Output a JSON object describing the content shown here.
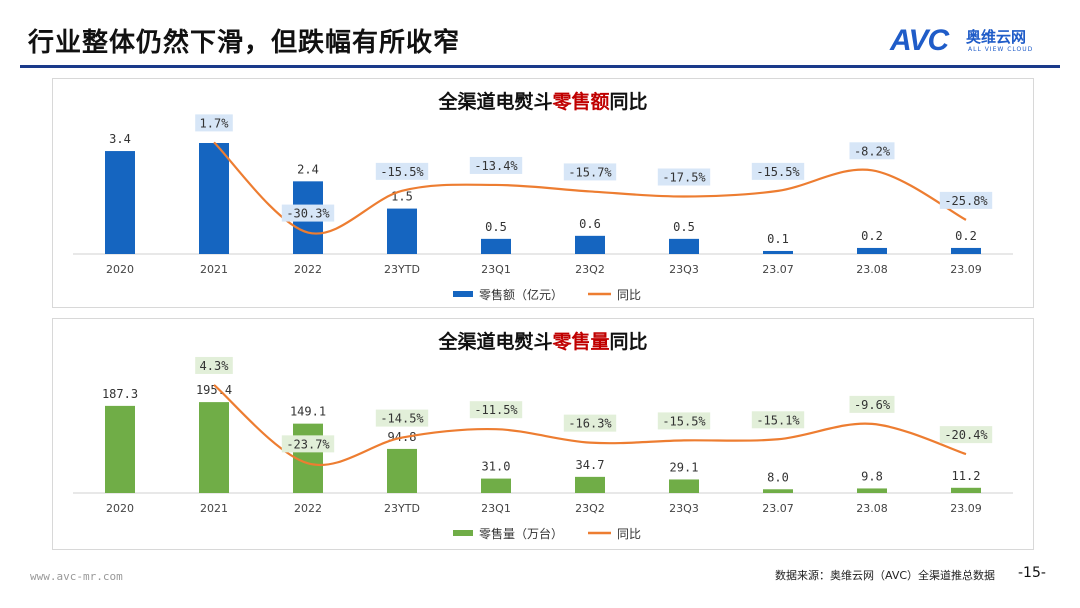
{
  "page": {
    "title": "行业整体仍然下滑，但跌幅有所收窄",
    "logo_en": "AVC",
    "logo_cn": "奥维云网",
    "logo_sub": "ALL VIEW CLOUD",
    "url": "www.avc-mr.com",
    "source": "数据来源：奥维云网（AVC）全渠道推总数据",
    "page_number": "-15-"
  },
  "chart_data": [
    {
      "type": "bar",
      "title_pre": "全渠道电熨斗",
      "title_hl": "零售额",
      "title_post": "同比",
      "categories": [
        "2020",
        "2021",
        "2022",
        "23YTD",
        "23Q1",
        "23Q2",
        "23Q3",
        "23.07",
        "23.08",
        "23.09"
      ],
      "series": [
        {
          "name": "零售额（亿元）",
          "type": "bar",
          "values": [
            3.4,
            null,
            2.4,
            1.5,
            0.5,
            0.6,
            0.5,
            0.1,
            0.2,
            0.2
          ],
          "labels": [
            "3.4",
            "",
            "2.4",
            "1.5",
            "0.5",
            "0.6",
            "0.5",
            "0.1",
            "0.2",
            "0.2"
          ]
        },
        {
          "name": "同比",
          "type": "line",
          "values": [
            null,
            1.7,
            -30.3,
            -15.5,
            -13.4,
            -15.7,
            -17.5,
            -15.5,
            -8.2,
            -25.8
          ],
          "labels": [
            "",
            "1.7%",
            "-30.3%",
            "-15.5%",
            "-13.4%",
            "-15.7%",
            "-17.5%",
            "-15.5%",
            "-8.2%",
            "-25.8%"
          ]
        }
      ],
      "ylim_bar": [
        0,
        3.6
      ],
      "ylim_line": [
        -45,
        10
      ],
      "bar_color": "#1565c0",
      "line_color": "#ed7d31",
      "label_bg": "#d7e6f7"
    },
    {
      "type": "bar",
      "title_pre": "全渠道电熨斗",
      "title_hl": "零售量",
      "title_post": "同比",
      "categories": [
        "2020",
        "2021",
        "2022",
        "23YTD",
        "23Q1",
        "23Q2",
        "23Q3",
        "23.07",
        "23.08",
        "23.09"
      ],
      "series": [
        {
          "name": "零售量（万台）",
          "type": "bar",
          "values": [
            187.3,
            195.4,
            149.1,
            94.8,
            31.0,
            34.7,
            29.1,
            8.0,
            9.8,
            11.2
          ],
          "labels": [
            "187.3",
            "195.4",
            "149.1",
            "94.8",
            "31.0",
            "34.7",
            "29.1",
            "8.0",
            "9.8",
            "11.2"
          ]
        },
        {
          "name": "同比",
          "type": "line",
          "values": [
            null,
            4.3,
            -23.7,
            -14.5,
            -11.5,
            -16.3,
            -15.5,
            -15.1,
            -9.6,
            -20.4
          ],
          "labels": [
            "",
            "4.3%",
            "-23.7%",
            "-14.5%",
            "-11.5%",
            "-16.3%",
            "-15.5%",
            "-15.1%",
            "-9.6%",
            "-20.4%"
          ]
        }
      ],
      "ylim_bar": [
        0,
        215
      ],
      "ylim_line": [
        -40,
        10
      ],
      "bar_color": "#70ad47",
      "line_color": "#ed7d31",
      "label_bg": "#e2efd9"
    }
  ]
}
